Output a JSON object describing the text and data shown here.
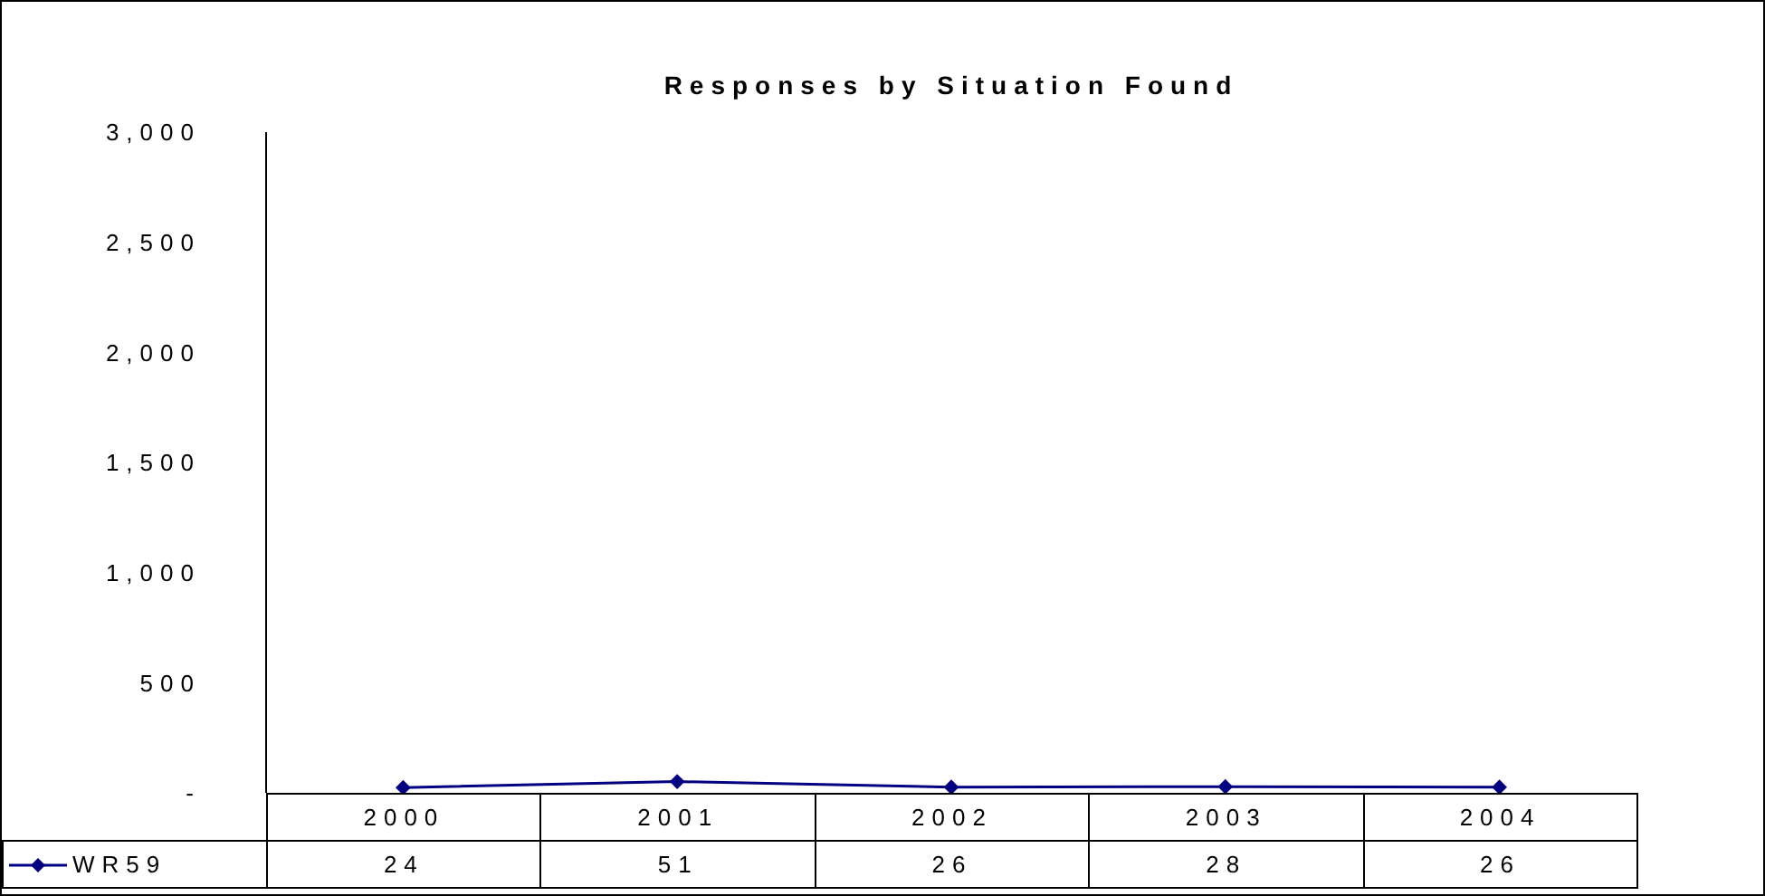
{
  "chart_data": {
    "type": "line",
    "title": "Responses by Situation Found",
    "categories": [
      "2000",
      "2001",
      "2002",
      "2003",
      "2004"
    ],
    "series": [
      {
        "name": "WR59",
        "color": "#000080",
        "values": [
          24,
          51,
          26,
          28,
          26
        ]
      }
    ],
    "ylim": [
      0,
      3000
    ],
    "yticks": [
      {
        "value": 0,
        "label": "-"
      },
      {
        "value": 500,
        "label": "500"
      },
      {
        "value": 1000,
        "label": "1,000"
      },
      {
        "value": 1500,
        "label": "1,500"
      },
      {
        "value": 2000,
        "label": "2,000"
      },
      {
        "value": 2500,
        "label": "2,500"
      },
      {
        "value": 3000,
        "label": "3,000"
      }
    ],
    "marker": "diamond",
    "line_style": "solid",
    "grid": false,
    "legend": "bottom left",
    "data_labels": true
  }
}
